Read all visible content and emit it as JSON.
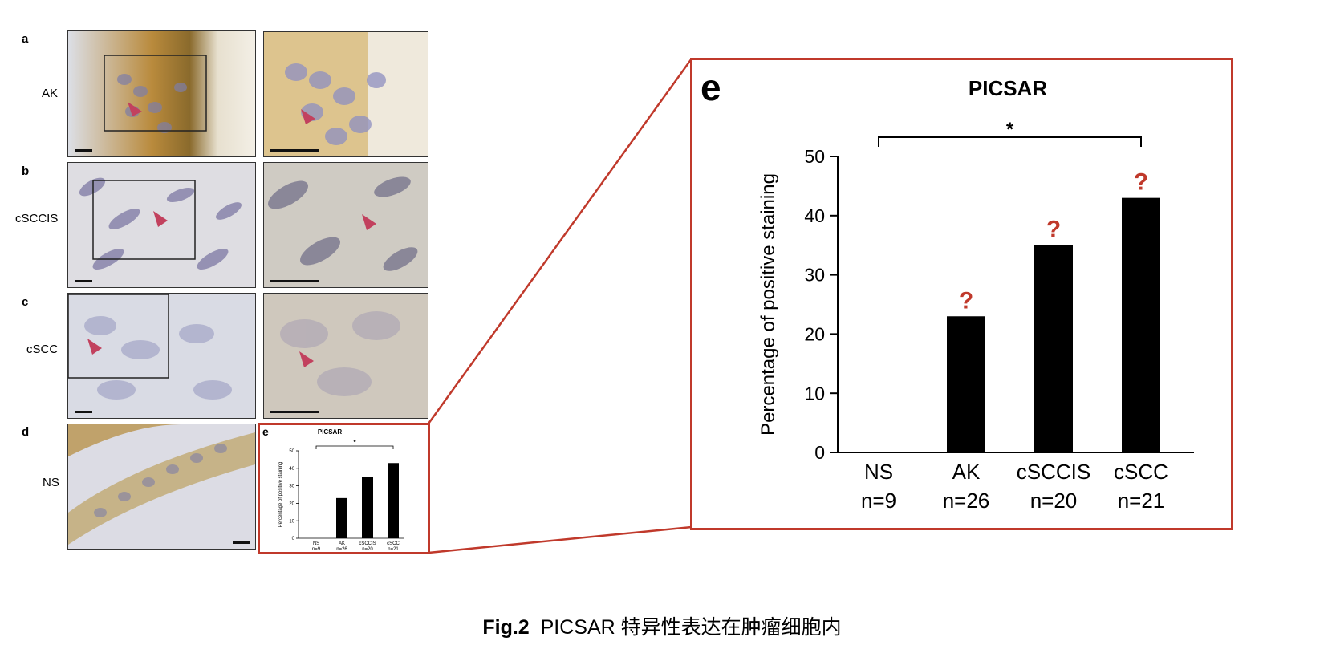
{
  "panels": [
    {
      "letter": "a",
      "label": "AK"
    },
    {
      "letter": "b",
      "label": "cSCCIS"
    },
    {
      "letter": "c",
      "label": "cSCC"
    },
    {
      "letter": "d",
      "label": "NS"
    }
  ],
  "chart_letter": "e",
  "colors": {
    "zoom_frame": "#c0392b",
    "question_mark": "#c0392b",
    "bar": "#000000",
    "arrowhead": "#c2415e"
  },
  "annotation_symbol": "?",
  "chart_data": {
    "type": "bar",
    "title": "PICSAR",
    "ylabel": "Percentage of positive staining",
    "xlabel": "",
    "ylim": [
      0,
      50
    ],
    "yticks": [
      0,
      10,
      20,
      30,
      40,
      50
    ],
    "categories": [
      "NS",
      "AK",
      "cSCCIS",
      "cSCC"
    ],
    "category_sublabels": [
      "n=9",
      "n=26",
      "n=20",
      "n=21"
    ],
    "values": [
      0,
      23,
      35,
      43
    ],
    "significance": {
      "from": "NS",
      "to": "cSCC",
      "label": "*"
    }
  },
  "caption": {
    "fig": "Fig.2",
    "text": "PICSAR 特异性表达在肿瘤细胞内"
  }
}
